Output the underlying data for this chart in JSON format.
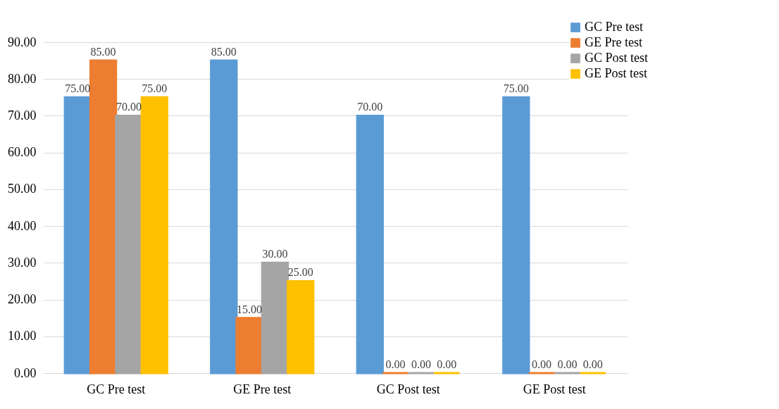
{
  "chart_data": {
    "type": "bar",
    "categories": [
      "GC Pre test",
      "GE Pre test",
      "GC Post test",
      "GE Post test"
    ],
    "series": [
      {
        "name": "GC Pre test",
        "color": "#5b9bd5",
        "values": [
          75,
          85,
          70,
          75
        ],
        "value_labels": [
          "75.00",
          "85.00",
          "70.00",
          "75.00"
        ]
      },
      {
        "name": "GE Pre test",
        "color": "#ed7d31",
        "values": [
          85,
          15,
          0,
          0
        ],
        "value_labels": [
          "85.00",
          "15.00",
          "0.00",
          "0.00"
        ]
      },
      {
        "name": "GC Post test",
        "color": "#a5a5a5",
        "values": [
          70,
          30,
          0,
          0
        ],
        "value_labels": [
          "70.00",
          "30.00",
          "0.00",
          "0.00"
        ]
      },
      {
        "name": "GE Post test",
        "color": "#ffc000",
        "values": [
          75,
          25,
          0,
          0
        ],
        "value_labels": [
          "75.00",
          "25.00",
          "0.00",
          "0.00"
        ]
      }
    ],
    "ylim": [
      0,
      90
    ],
    "yticks": [
      {
        "value": 0,
        "label": "0.00"
      },
      {
        "value": 10,
        "label": "10.00"
      },
      {
        "value": 20,
        "label": "20.00"
      },
      {
        "value": 30,
        "label": "30.00"
      },
      {
        "value": 40,
        "label": "40.00"
      },
      {
        "value": 50,
        "label": "50.00"
      },
      {
        "value": 60,
        "label": "60.00"
      },
      {
        "value": 70,
        "label": "70.00"
      },
      {
        "value": 80,
        "label": "80.00"
      },
      {
        "value": 90,
        "label": "90.00"
      }
    ],
    "grid": "y",
    "legend": "top right"
  }
}
